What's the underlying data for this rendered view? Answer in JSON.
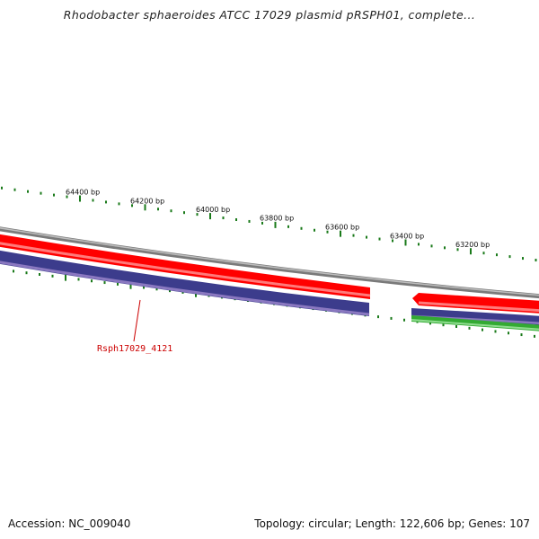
{
  "title": "Rhodobacter sphaeroides ATCC 17029 plasmid pRSPH01, complete...",
  "footer": {
    "accession": "Accession: NC_009040",
    "summary": "Topology: circular; Length: 122,606 bp; Genes: 107"
  },
  "scale_labels": [
    "64400 bp",
    "64200 bp",
    "64000 bp",
    "63800 bp",
    "63600 bp",
    "63400 bp",
    "63200 bp"
  ],
  "gene_label": "Rsph17029_4121",
  "colors": {
    "backbone": "#808080",
    "forward_cds": "#ff0000",
    "reverse_cds": "#3c3c8c",
    "green_feature": "#33aa33",
    "ticks": "#1a7a1a",
    "label": "#cc0000"
  }
}
